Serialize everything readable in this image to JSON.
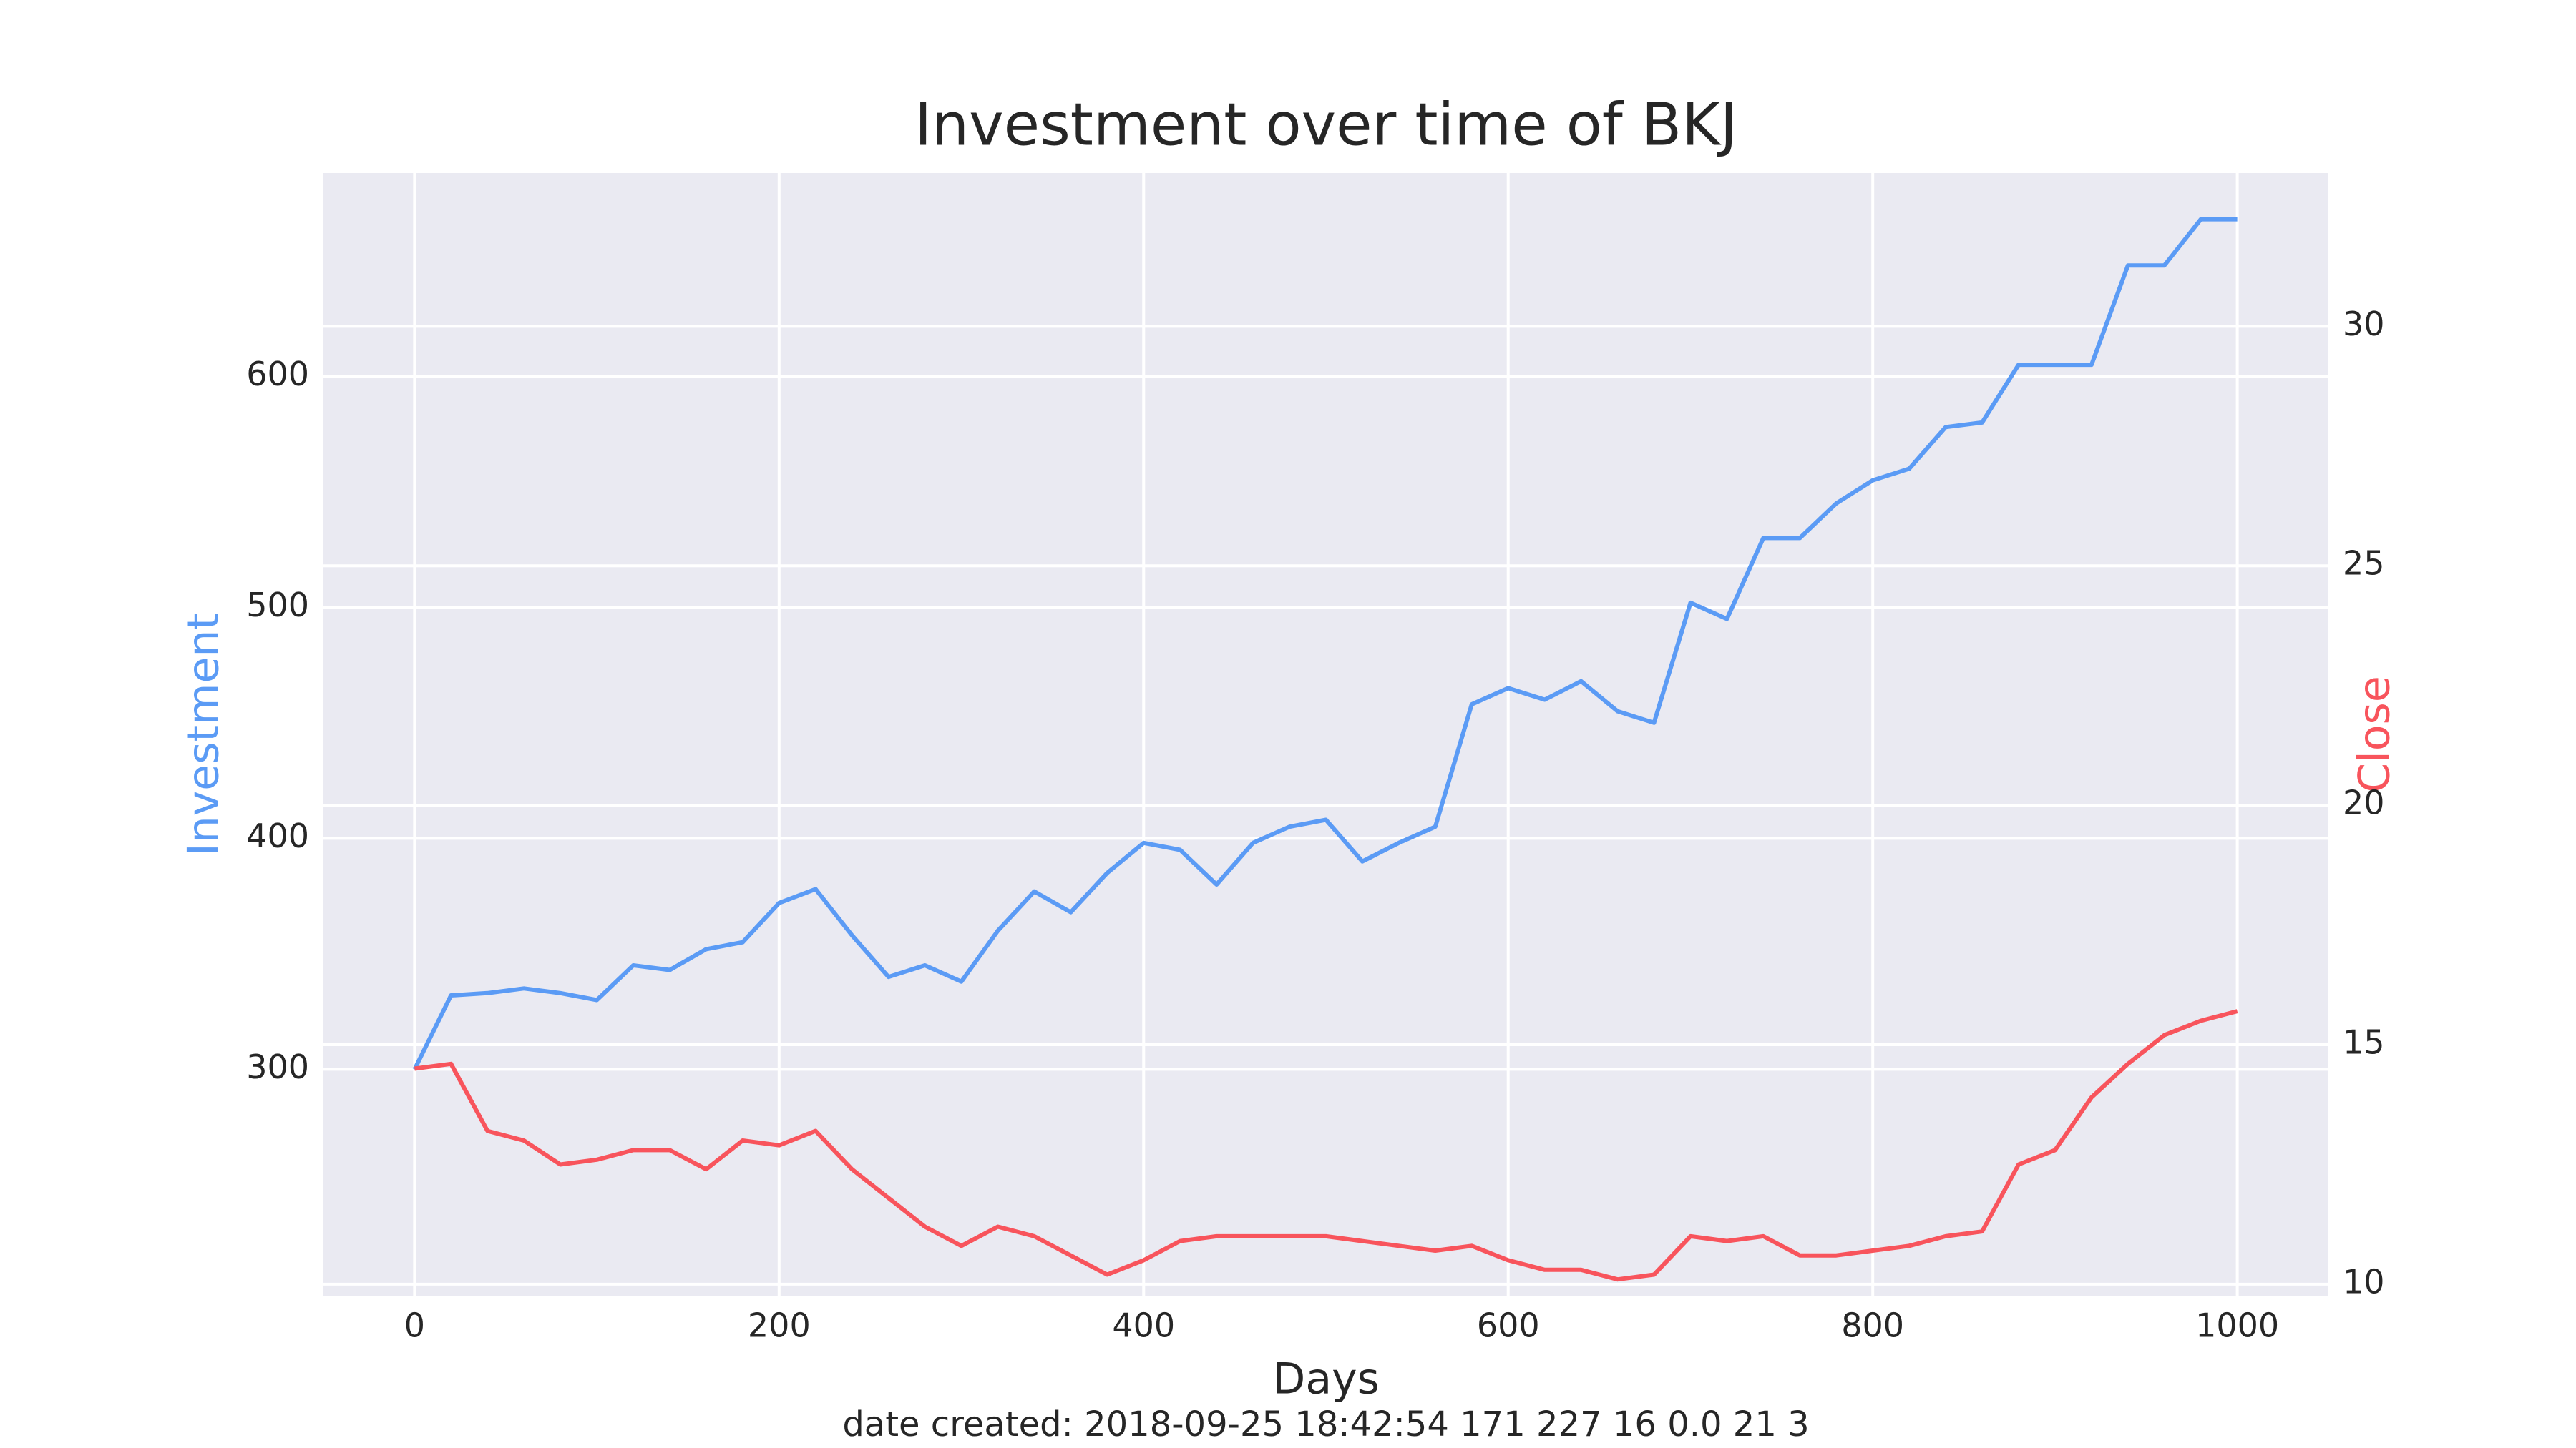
{
  "chart_data": {
    "type": "line",
    "title": "Investment over time of BKJ",
    "xlabel": "Days",
    "caption": "date created: 2018-09-25 18:42:54 171 227 16 0.0 21 3",
    "x": [
      0,
      20,
      40,
      60,
      80,
      100,
      120,
      140,
      160,
      180,
      200,
      220,
      240,
      260,
      280,
      300,
      320,
      340,
      360,
      380,
      400,
      420,
      440,
      460,
      480,
      500,
      520,
      540,
      560,
      580,
      600,
      620,
      640,
      660,
      680,
      700,
      720,
      740,
      760,
      780,
      800,
      820,
      840,
      860,
      880,
      900,
      920,
      940,
      960,
      980,
      1000
    ],
    "series": [
      {
        "name": "Investment",
        "color": "#5b9bf5",
        "axis": "y",
        "values": [
          300,
          332,
          333,
          335,
          333,
          330,
          345,
          343,
          352,
          355,
          372,
          378,
          358,
          340,
          345,
          338,
          360,
          377,
          368,
          385,
          398,
          395,
          380,
          398,
          405,
          408,
          390,
          398,
          405,
          458,
          465,
          460,
          468,
          455,
          450,
          502,
          495,
          530,
          530,
          545,
          555,
          560,
          578,
          580,
          605,
          605,
          605,
          648,
          648,
          668,
          668
        ]
      },
      {
        "name": "Close",
        "color": "#f8545c",
        "axis": "y2",
        "values": [
          14.5,
          14.6,
          13.2,
          13.0,
          12.5,
          12.6,
          12.8,
          12.8,
          12.4,
          13.0,
          12.9,
          13.2,
          12.4,
          11.8,
          11.2,
          10.8,
          11.2,
          11.0,
          10.6,
          10.2,
          10.5,
          10.9,
          11.0,
          11.0,
          11.0,
          11.0,
          10.9,
          10.8,
          10.7,
          10.8,
          10.5,
          10.3,
          10.3,
          10.1,
          10.2,
          11.0,
          10.9,
          11.0,
          10.6,
          10.6,
          10.7,
          10.8,
          11.0,
          11.1,
          12.5,
          12.8,
          13.9,
          14.6,
          15.2,
          15.5,
          15.7
        ]
      }
    ],
    "xlim": [
      -50,
      1050
    ],
    "xticks": [
      0,
      200,
      400,
      600,
      800,
      1000
    ],
    "ylim": [
      202,
      688
    ],
    "yticks": [
      300,
      400,
      500,
      600
    ],
    "y2lim": [
      9.76,
      33.2
    ],
    "y2ticks": [
      10,
      15,
      20,
      25,
      30
    ],
    "grid": true
  }
}
